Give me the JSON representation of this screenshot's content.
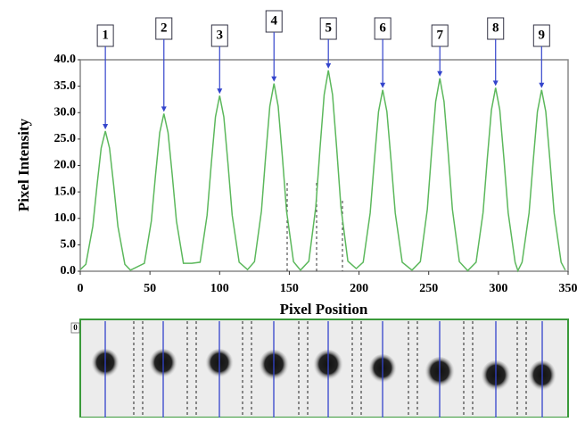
{
  "chart_data": {
    "type": "line",
    "xlabel": "Pixel Position",
    "ylabel": "Pixel Intensity",
    "xlim": [
      0,
      350
    ],
    "ylim": [
      0,
      40
    ],
    "xticks": [
      0,
      50,
      100,
      150,
      200,
      250,
      300,
      350
    ],
    "yticks": [
      {
        "value": 0,
        "label": "0.0"
      },
      {
        "value": 5,
        "label": "5.0"
      },
      {
        "value": 10,
        "label": "10.0"
      },
      {
        "value": 15,
        "label": "15.0"
      },
      {
        "value": 20,
        "label": "20.0"
      },
      {
        "value": 25,
        "label": "25.0"
      },
      {
        "value": 30,
        "label": "30.0"
      },
      {
        "value": 35,
        "label": "35.0"
      },
      {
        "value": 40,
        "label": "40.0"
      }
    ],
    "series": [
      {
        "color": "#5cb85c",
        "x": [
          0,
          4,
          9,
          12,
          15,
          18,
          21,
          24,
          27,
          32,
          36,
          46,
          51,
          54,
          57,
          60,
          63,
          66,
          69,
          74,
          80,
          86,
          91,
          94,
          97,
          100,
          103,
          106,
          109,
          114,
          120,
          125,
          130,
          133,
          136,
          139,
          142,
          145,
          148,
          153,
          158,
          164,
          169,
          172,
          175,
          178,
          181,
          184,
          187,
          192,
          198,
          203,
          208,
          211,
          214,
          217,
          220,
          223,
          226,
          231,
          238,
          244,
          249,
          252,
          255,
          258,
          261,
          264,
          267,
          272,
          278,
          284,
          289,
          292,
          295,
          298,
          301,
          304,
          307,
          312,
          314,
          317,
          322,
          325,
          328,
          331,
          334,
          337,
          340,
          345,
          348
        ],
        "values": [
          0.3,
          1.3,
          8.5,
          16.2,
          23.3,
          26.5,
          23.3,
          16.2,
          8.5,
          1.3,
          0.2,
          1.5,
          9.5,
          18.2,
          26.2,
          29.8,
          26.2,
          18.2,
          9.5,
          1.5,
          1.5,
          1.7,
          10.6,
          20.3,
          29.2,
          33.2,
          29.2,
          20.3,
          10.6,
          1.7,
          0.3,
          1.8,
          11.4,
          21.7,
          31.2,
          35.5,
          31.2,
          21.7,
          11.4,
          1.8,
          0.2,
          1.9,
          12.2,
          23.2,
          33.4,
          38.0,
          33.4,
          23.2,
          12.2,
          1.9,
          0.5,
          1.7,
          11.0,
          20.9,
          30.2,
          34.3,
          30.2,
          20.9,
          11.0,
          1.7,
          0.2,
          1.8,
          11.7,
          22.3,
          32.1,
          36.5,
          32.1,
          22.3,
          11.7,
          1.8,
          0.1,
          1.7,
          11.1,
          21.2,
          30.5,
          34.7,
          30.5,
          21.2,
          11.1,
          1.7,
          0.1,
          1.7,
          11.0,
          20.9,
          30.2,
          34.3,
          30.2,
          20.9,
          11.0,
          1.7,
          0.2
        ]
      }
    ],
    "annotations": [
      {
        "text": "1",
        "x": 18,
        "y": 26.5
      },
      {
        "text": "2",
        "x": 60,
        "y": 29.8
      },
      {
        "text": "3",
        "x": 100,
        "y": 33.2
      },
      {
        "text": "4",
        "x": 139,
        "y": 35.5
      },
      {
        "text": "5",
        "x": 178,
        "y": 38.0
      },
      {
        "text": "6",
        "x": 217,
        "y": 34.3
      },
      {
        "text": "7",
        "x": 258,
        "y": 36.5
      },
      {
        "text": "8",
        "x": 298,
        "y": 34.7
      },
      {
        "text": "9",
        "x": 331,
        "y": 34.3
      }
    ],
    "strip_label": "0"
  }
}
